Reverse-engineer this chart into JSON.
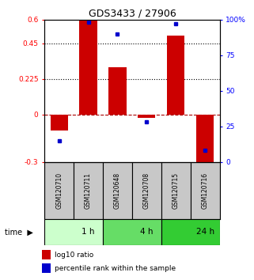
{
  "title": "GDS3433 / 27906",
  "samples": [
    "GSM120710",
    "GSM120711",
    "GSM120648",
    "GSM120708",
    "GSM120715",
    "GSM120716"
  ],
  "log10_ratio": [
    -0.1,
    0.6,
    0.3,
    -0.02,
    0.5,
    -0.33
  ],
  "percentile_rank": [
    15,
    98,
    90,
    28,
    97,
    8
  ],
  "ylim_left": [
    -0.3,
    0.6
  ],
  "ylim_right": [
    0,
    100
  ],
  "yticks_left": [
    -0.3,
    0,
    0.225,
    0.45,
    0.6
  ],
  "yticks_right": [
    0,
    25,
    50,
    75,
    100
  ],
  "ytick_labels_left": [
    "-0.3",
    "0",
    "0.225",
    "0.45",
    "0.6"
  ],
  "ytick_labels_right": [
    "0",
    "25",
    "50",
    "75",
    "100%"
  ],
  "hlines_dotted": [
    0.45,
    0.225
  ],
  "hline_dashed": 0,
  "bar_color": "#cc0000",
  "dot_color": "#0000cc",
  "time_groups": [
    {
      "label": "1 h",
      "start": 0,
      "end": 2,
      "color": "#ccffcc"
    },
    {
      "label": "4 h",
      "start": 2,
      "end": 4,
      "color": "#66dd66"
    },
    {
      "label": "24 h",
      "start": 4,
      "end": 6,
      "color": "#33cc33"
    }
  ],
  "legend_bar_color": "#cc0000",
  "legend_dot_color": "#0000cc",
  "legend_bar_label": "log10 ratio",
  "legend_dot_label": "percentile rank within the sample",
  "sample_box_color": "#c8c8c8",
  "time_label": "time"
}
